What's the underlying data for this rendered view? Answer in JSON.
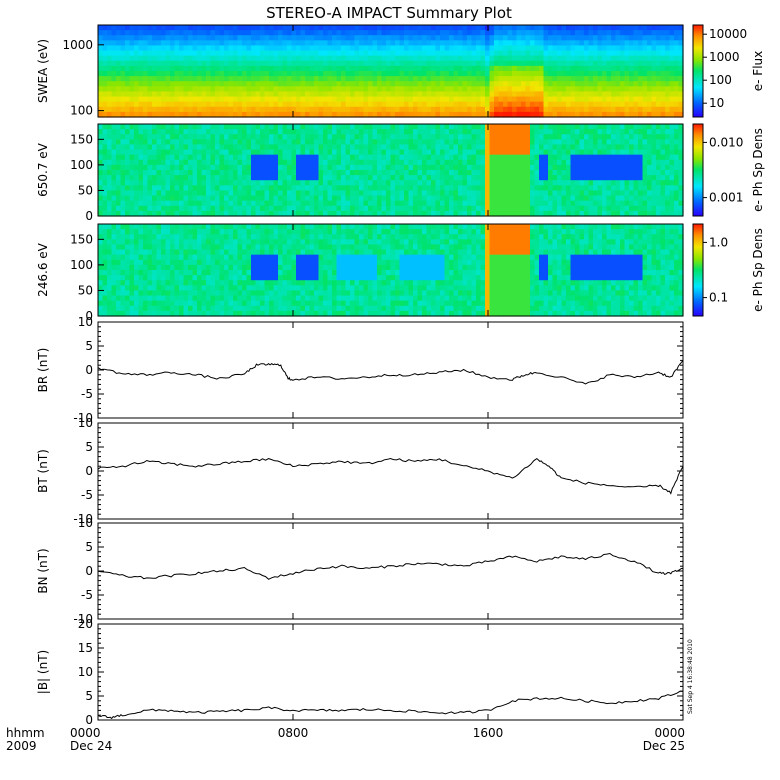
{
  "chart_data": [
    {
      "type": "heatmap",
      "title": "STEREO-A IMPACT Summary Plot",
      "ylabel": "SWEA (eV)",
      "ylim": [
        80,
        2000
      ],
      "yscale": "log",
      "yticks": [
        "1000",
        "100"
      ],
      "colorbar": {
        "label": "e- Flux",
        "scale": "log",
        "ticks": [
          "10000",
          "1000",
          "100",
          "10"
        ]
      },
      "features": [
        {
          "x_hours": [
            16.0,
            18.3
          ],
          "description": "enhanced flux at low energies"
        }
      ]
    },
    {
      "type": "heatmap",
      "ylabel": "650.7 eV",
      "ylim": [
        0,
        180
      ],
      "yticks": [
        "150",
        "100",
        "50",
        "0"
      ],
      "colorbar": {
        "label": "e- Ph Sp Dens",
        "scale": "log",
        "ticks": [
          "0.010",
          "0.001"
        ]
      }
    },
    {
      "type": "heatmap",
      "ylabel": "246.6 eV",
      "ylim": [
        0,
        180
      ],
      "yticks": [
        "150",
        "100",
        "50",
        "0"
      ],
      "colorbar": {
        "label": "e- Ph Sp Dens",
        "scale": "log",
        "ticks": [
          "1.0",
          "0.1"
        ]
      }
    },
    {
      "type": "line",
      "ylabel": "BR (nT)",
      "ylim": [
        -10,
        10
      ],
      "yticks": [
        "10",
        "5",
        "0",
        "-5",
        "-10"
      ],
      "x_hours": [
        0,
        1,
        2,
        3,
        4,
        5,
        6,
        6.5,
        7,
        7.5,
        7.8,
        8,
        9,
        10,
        11,
        12,
        13,
        14,
        15,
        16,
        17,
        17.5,
        18,
        19,
        20,
        21,
        22,
        23,
        23.5,
        24
      ],
      "values": [
        0.5,
        -0.8,
        -1.0,
        -0.5,
        -1.0,
        -1.8,
        -0.8,
        1.0,
        1.2,
        1.0,
        -1.8,
        -2.0,
        -1.5,
        -1.8,
        -1.5,
        -1.0,
        -1.0,
        -0.5,
        0.0,
        -1.5,
        -2.0,
        -1.0,
        -0.5,
        -1.5,
        -3.0,
        -1.0,
        -1.5,
        -0.5,
        -1.5,
        2.0
      ]
    },
    {
      "type": "line",
      "ylabel": "BT (nT)",
      "ylim": [
        -10,
        10
      ],
      "yticks": [
        "10",
        "5",
        "0",
        "-5",
        "-10"
      ],
      "x_hours": [
        0,
        1,
        2,
        3,
        4,
        5,
        6,
        7,
        8,
        9,
        10,
        11,
        12,
        13,
        14,
        15,
        16,
        17,
        18,
        18.5,
        19,
        20,
        21,
        22,
        23,
        23.5,
        24
      ],
      "values": [
        0.5,
        1.0,
        2.0,
        1.5,
        1.0,
        1.5,
        2.0,
        2.5,
        1.0,
        1.5,
        2.0,
        1.5,
        2.5,
        2.0,
        2.5,
        1.0,
        0.0,
        -1.5,
        2.5,
        1.0,
        -1.5,
        -2.5,
        -3.0,
        -3.5,
        -3.0,
        -4.5,
        1.0
      ]
    },
    {
      "type": "line",
      "ylabel": "BN (nT)",
      "ylim": [
        -10,
        10
      ],
      "yticks": [
        "10",
        "5",
        "0",
        "-5",
        "-10"
      ],
      "x_hours": [
        0,
        1,
        2,
        3,
        4,
        5,
        6,
        7,
        8,
        9,
        10,
        11,
        12,
        13,
        14,
        15,
        16,
        17,
        18,
        19,
        20,
        21,
        22,
        23,
        23.5,
        24
      ],
      "values": [
        0.0,
        -1.0,
        -1.5,
        -1.0,
        -0.5,
        0.0,
        0.5,
        -1.5,
        -0.5,
        0.5,
        1.0,
        0.5,
        1.0,
        1.5,
        1.5,
        1.0,
        2.0,
        3.0,
        2.0,
        3.0,
        2.5,
        3.5,
        2.0,
        -0.5,
        -0.5,
        0.5
      ]
    },
    {
      "type": "line",
      "ylabel": "|B| (nT)",
      "ylim": [
        0,
        20
      ],
      "yticks": [
        "20",
        "15",
        "10",
        "5",
        "0"
      ],
      "x_hours": [
        0,
        0.5,
        1,
        2,
        3,
        4,
        5,
        6,
        7,
        8,
        9,
        10,
        11,
        12,
        13,
        14,
        15,
        16,
        17,
        18,
        19,
        20,
        21,
        22,
        23,
        24
      ],
      "values": [
        1.0,
        0.5,
        1.0,
        2.0,
        2.0,
        1.5,
        1.8,
        2.0,
        2.5,
        2.0,
        2.0,
        2.0,
        2.2,
        2.0,
        1.8,
        1.5,
        1.5,
        2.0,
        4.0,
        4.5,
        4.5,
        4.0,
        3.5,
        4.0,
        4.5,
        6.0
      ]
    }
  ],
  "xaxis": {
    "range_hours": [
      0,
      24
    ],
    "row_header": "hhmm",
    "year": "2009",
    "ticks": [
      {
        "hour": 0,
        "label": "0000",
        "date": "Dec 24"
      },
      {
        "hour": 8,
        "label": "0800",
        "date": ""
      },
      {
        "hour": 16,
        "label": "1600",
        "date": ""
      },
      {
        "hour": 24,
        "label": "0000",
        "date": "Dec 25"
      }
    ]
  },
  "timestamp": "Sat Sep  4 16:38:48 2010"
}
